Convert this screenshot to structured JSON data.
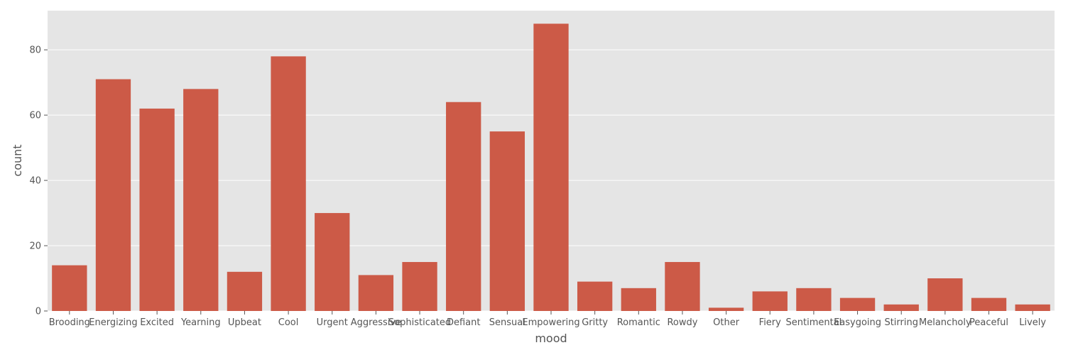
{
  "chart_data": {
    "type": "bar",
    "xlabel": "mood",
    "ylabel": "count",
    "ylim": [
      0,
      92
    ],
    "yticks": [
      0,
      20,
      40,
      60,
      80
    ],
    "grid": true,
    "bar_color": "#CC5A47",
    "background_color": "#E5E5E5",
    "grid_color": "#FFFFFF",
    "categories": [
      "Brooding",
      "Energizing",
      "Excited",
      "Yearning",
      "Upbeat",
      "Cool",
      "Urgent",
      "Aggressive",
      "Sophisticated",
      "Defiant",
      "Sensual",
      "Empowering",
      "Gritty",
      "Romantic",
      "Rowdy",
      "Other",
      "Fiery",
      "Sentimental",
      "Easygoing",
      "Stirring",
      "Melancholy",
      "Peaceful",
      "Lively"
    ],
    "values": [
      14,
      71,
      62,
      68,
      12,
      78,
      30,
      11,
      15,
      64,
      55,
      88,
      9,
      7,
      15,
      1,
      6,
      7,
      4,
      2,
      10,
      4,
      2
    ]
  }
}
